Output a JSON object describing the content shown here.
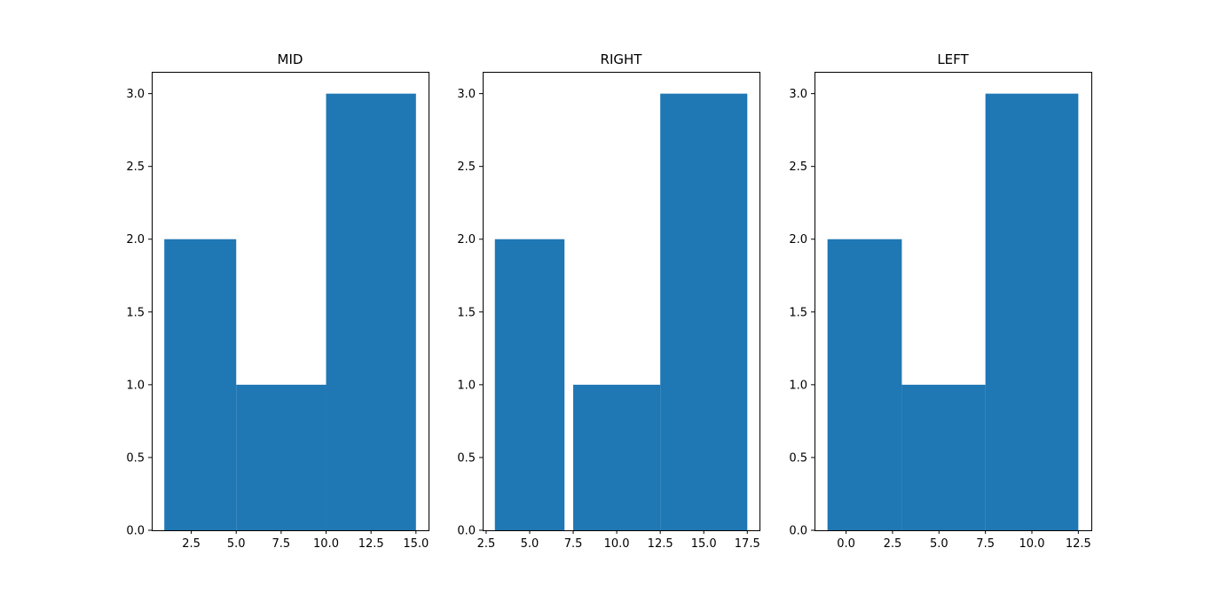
{
  "style": {
    "bar_color": "#1f77b4",
    "axes_color": "#000000",
    "background": "#ffffff"
  },
  "chart_data": [
    {
      "type": "bar",
      "title": "MID",
      "xlabel": "",
      "ylabel": "",
      "xlim": [
        0.3,
        15.7
      ],
      "ylim": [
        0,
        3.15
      ],
      "xticks": [
        2.5,
        5.0,
        7.5,
        10.0,
        12.5,
        15.0
      ],
      "yticks": [
        0.0,
        0.5,
        1.0,
        1.5,
        2.0,
        2.5,
        3.0
      ],
      "grid": false,
      "bars": [
        {
          "x0": 1.0,
          "x1": 5.0,
          "height": 2.0
        },
        {
          "x0": 5.0,
          "x1": 10.0,
          "height": 1.0
        },
        {
          "x0": 10.0,
          "x1": 15.0,
          "height": 3.0
        }
      ]
    },
    {
      "type": "bar",
      "title": "RIGHT",
      "xlabel": "",
      "ylabel": "",
      "xlim": [
        2.3,
        18.2
      ],
      "ylim": [
        0,
        3.15
      ],
      "xticks": [
        2.5,
        5.0,
        7.5,
        10.0,
        12.5,
        15.0,
        17.5
      ],
      "yticks": [
        0.0,
        0.5,
        1.0,
        1.5,
        2.0,
        2.5,
        3.0
      ],
      "grid": false,
      "bars": [
        {
          "x0": 3.0,
          "x1": 7.0,
          "height": 2.0
        },
        {
          "x0": 7.5,
          "x1": 12.5,
          "height": 1.0
        },
        {
          "x0": 12.5,
          "x1": 17.5,
          "height": 3.0
        }
      ]
    },
    {
      "type": "bar",
      "title": "LEFT",
      "xlabel": "",
      "ylabel": "",
      "xlim": [
        -1.7,
        13.2
      ],
      "ylim": [
        0,
        3.15
      ],
      "xticks": [
        0.0,
        2.5,
        5.0,
        7.5,
        10.0,
        12.5
      ],
      "yticks": [
        0.0,
        0.5,
        1.0,
        1.5,
        2.0,
        2.5,
        3.0
      ],
      "grid": false,
      "bars": [
        {
          "x0": -1.0,
          "x1": 3.0,
          "height": 2.0
        },
        {
          "x0": 3.0,
          "x1": 7.5,
          "height": 1.0
        },
        {
          "x0": 7.5,
          "x1": 12.5,
          "height": 3.0
        }
      ]
    }
  ]
}
